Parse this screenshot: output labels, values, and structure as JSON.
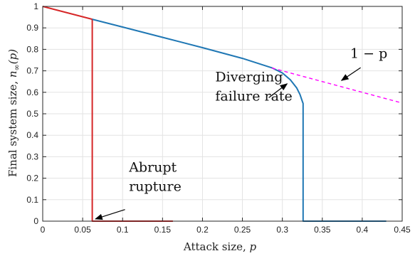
{
  "chart_data": {
    "type": "line",
    "xlabel": "Attack size, ",
    "xlabel_var": "p",
    "ylabel": "Final system size, ",
    "ylabel_var": "n",
    "ylabel_sub": "∞",
    "ylabel_arg": "(p)",
    "xlim": [
      0,
      0.45
    ],
    "ylim": [
      0,
      1
    ],
    "x_ticks": [
      0,
      0.05,
      0.1,
      0.15,
      0.2,
      0.25,
      0.3,
      0.35,
      0.4,
      0.45
    ],
    "x_tick_labels": [
      "0",
      "0.05",
      "0.1",
      "0.15",
      "0.2",
      "0.25",
      "0.3",
      "0.35",
      "0.4",
      "0.45"
    ],
    "y_ticks": [
      0,
      0.1,
      0.2,
      0.3,
      0.4,
      0.5,
      0.6,
      0.7,
      0.8,
      0.9,
      1
    ],
    "y_tick_labels": [
      "0",
      "0.1",
      "0.2",
      "0.3",
      "0.4",
      "0.5",
      "0.6",
      "0.7",
      "0.8",
      "0.9",
      "1"
    ],
    "grid": true,
    "series": [
      {
        "color": "#d62728",
        "style": "solid",
        "x": [
          0,
          0.062,
          0.062,
          0.163
        ],
        "y": [
          1,
          0.94,
          0,
          0
        ]
      },
      {
        "color": "#1f77b4",
        "style": "solid",
        "x": [
          0.062,
          0.1,
          0.15,
          0.2,
          0.25,
          0.287,
          0.3,
          0.31,
          0.318,
          0.322,
          0.325,
          0.326,
          0.326,
          0.43
        ],
        "y": [
          0.94,
          0.904,
          0.856,
          0.808,
          0.758,
          0.714,
          0.69,
          0.658,
          0.62,
          0.59,
          0.558,
          0.548,
          0,
          0
        ]
      },
      {
        "color": "#ff00ff",
        "style": "dashed",
        "x": [
          0.287,
          0.45
        ],
        "y": [
          0.713,
          0.55
        ]
      }
    ],
    "annotations": [
      {
        "lines": [
          "Diverging",
          "failure rate"
        ],
        "text_at": [
          0.216,
          0.65
        ],
        "arrow_from": [
          0.283,
          0.575
        ],
        "arrow_to": [
          0.306,
          0.64
        ]
      },
      {
        "lines": [
          "Abrupt",
          "rupture"
        ],
        "text_at": [
          0.108,
          0.23
        ],
        "arrow_from": [
          0.103,
          0.054
        ],
        "arrow_to": [
          0.066,
          0.01
        ]
      },
      {
        "lines": [
          "1 − p"
        ],
        "text_at": [
          0.385,
          0.76
        ],
        "arrow_from": [
          0.398,
          0.715
        ],
        "arrow_to": [
          0.374,
          0.655
        ]
      }
    ]
  }
}
